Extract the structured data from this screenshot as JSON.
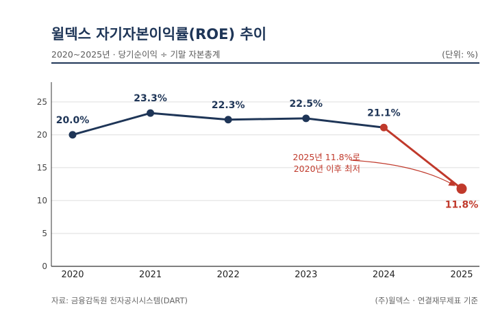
{
  "header": {
    "title": "윌덱스 자기자본이익률(ROE) 추이",
    "subtitle": "2020~2025년 · 당기순이익 ÷ 기말 자본총계",
    "unit": "(단위: %)"
  },
  "footer": {
    "source": "자료: 금융감독원 전자공시시스템(DART)",
    "basis": "(주)윌덱스 · 연결재무제표 기준"
  },
  "annotation": {
    "line1": "2025년 11.8%로",
    "line2": "2020년 이후 최저"
  },
  "colors": {
    "navy": "#1e3557",
    "highlight": "#c0392b",
    "grid": "#dddddd"
  },
  "chart_data": {
    "type": "line",
    "categories": [
      "2020",
      "2021",
      "2022",
      "2023",
      "2024",
      "2025"
    ],
    "values": [
      20.0,
      23.3,
      22.3,
      22.5,
      21.1,
      11.8
    ],
    "data_labels": [
      "20.0%",
      "23.3%",
      "22.3%",
      "22.5%",
      "21.1%",
      "11.8%"
    ],
    "highlight_segment_from": "2024",
    "highlight_point": "2025",
    "ylim": [
      0,
      28
    ],
    "yticks": [
      0,
      5,
      10,
      15,
      20,
      25
    ],
    "grid": true,
    "legend": "none"
  }
}
